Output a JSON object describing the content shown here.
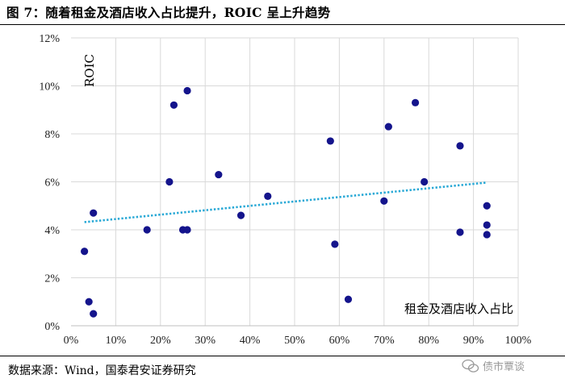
{
  "figure": {
    "title": "图 7：随着租金及酒店收入占比提升，ROIC 呈上升趋势",
    "source": "数据来源：Wind，国泰君安证券研究",
    "watermark": "债市覃谈"
  },
  "chart_data": {
    "type": "scatter",
    "title": "",
    "xlabel": "租金及酒店收入占比",
    "ylabel": "ROIC",
    "xlim": [
      0,
      1.0
    ],
    "ylim": [
      0,
      0.12
    ],
    "x_ticks": [
      "0%",
      "10%",
      "20%",
      "30%",
      "40%",
      "50%",
      "60%",
      "70%",
      "80%",
      "90%",
      "100%"
    ],
    "y_ticks": [
      "0%",
      "2%",
      "4%",
      "6%",
      "8%",
      "10%",
      "12%"
    ],
    "grid": true,
    "point_color": "#14148c",
    "trend_color": "#2aa9d6",
    "series": [
      {
        "x": [
          0.03,
          0.04,
          0.05,
          0.05,
          0.17,
          0.22,
          0.23,
          0.25,
          0.26,
          0.26,
          0.33,
          0.38,
          0.44,
          0.58,
          0.59,
          0.62,
          0.7,
          0.71,
          0.77,
          0.79,
          0.87,
          0.87,
          0.93,
          0.93,
          0.93
        ],
        "y": [
          0.031,
          0.01,
          0.047,
          0.005,
          0.04,
          0.06,
          0.092,
          0.04,
          0.04,
          0.098,
          0.063,
          0.046,
          0.054,
          0.077,
          0.034,
          0.011,
          0.052,
          0.083,
          0.093,
          0.06,
          0.075,
          0.039,
          0.05,
          0.042,
          0.038
        ]
      }
    ],
    "trendline": {
      "type": "linear",
      "x": [
        0.03,
        0.93
      ],
      "y": [
        0.0432,
        0.0597
      ],
      "style": "dotted"
    }
  }
}
